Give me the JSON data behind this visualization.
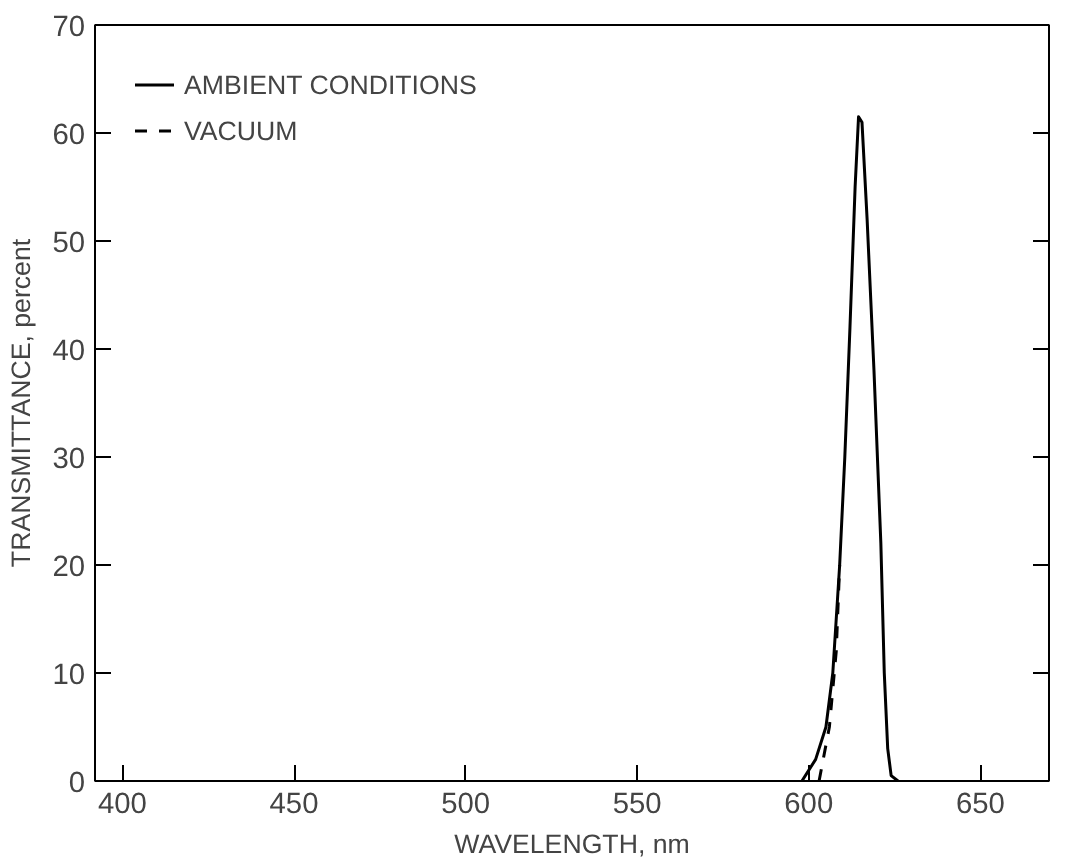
{
  "chart_data": {
    "type": "line",
    "xlabel": "WAVELENGTH, nm",
    "ylabel": "TRANSMITTANCE, percent",
    "xlim": [
      392,
      670
    ],
    "ylim": [
      0,
      70
    ],
    "xticks": [
      400,
      450,
      500,
      550,
      600,
      650
    ],
    "yticks": [
      0,
      10,
      20,
      30,
      40,
      50,
      60,
      70
    ],
    "grid": false,
    "legend": "top left",
    "series": [
      {
        "name": "AMBIENT CONDITIONS",
        "color": "#000000",
        "line_style": "solid",
        "x": [
          598,
          602,
          605,
          607,
          609,
          610.5,
          612,
          613.5,
          614.5,
          615.5,
          617,
          619,
          621,
          622,
          623,
          624,
          626
        ],
        "values": [
          0,
          2,
          5,
          10,
          20,
          30,
          42,
          55,
          61.5,
          61,
          52,
          38,
          22,
          10,
          3,
          0.5,
          0
        ]
      },
      {
        "name": "VACUUM",
        "color": "#000000",
        "line_style": "dashed",
        "x": [
          603,
          606,
          608,
          609
        ],
        "values": [
          0,
          5,
          12,
          20
        ]
      }
    ]
  }
}
